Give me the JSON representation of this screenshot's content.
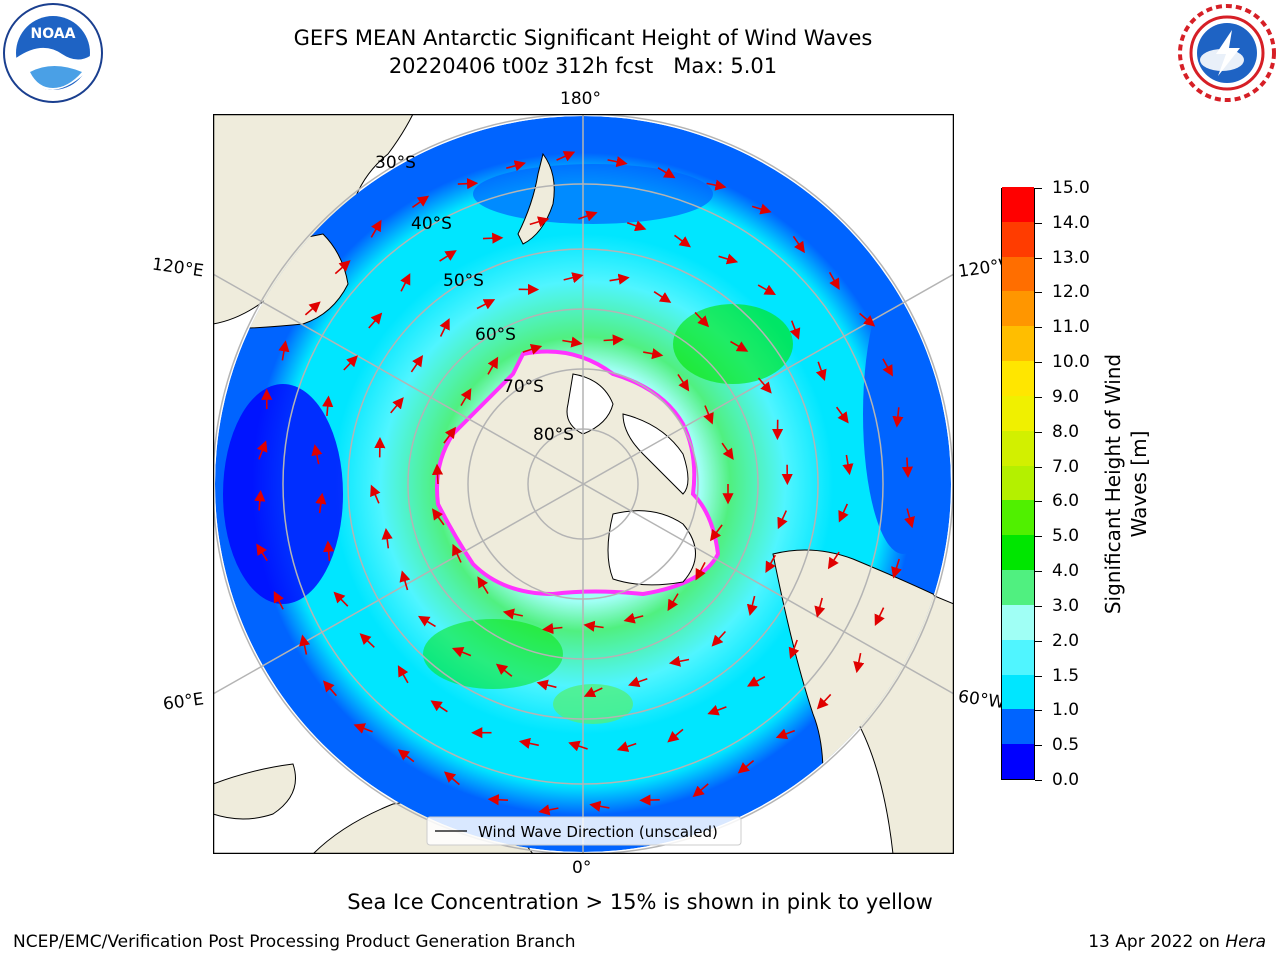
{
  "header": {
    "title_line1": "GEFS MEAN Antarctic Significant Height of Wind Waves",
    "title_line2": "20220406 t00z 312h fcst   Max: 5.01"
  },
  "logos": {
    "left": "NOAA",
    "right": "NATIONAL WEATHER SERVICE"
  },
  "map": {
    "projection": "south-polar-stereographic",
    "lon_labels": {
      "top": "180°",
      "bottom": "0°",
      "upper_left": "120°E",
      "upper_right": "120°W",
      "lower_left": "60°E",
      "lower_right": "60°W"
    },
    "lat_labels": [
      "30°S",
      "40°S",
      "50°S",
      "60°S",
      "70°S",
      "80°S"
    ],
    "legend": "Wind Wave Direction (unscaled)",
    "colors": {
      "land": "#efecdc",
      "ice": "#ffffff",
      "sea_ice_edge": "#ff33ff",
      "arrows": "#e00000",
      "grid": "#b4b4b4"
    }
  },
  "colorbar": {
    "label_line1": "Significant Height of Wind",
    "label_line2": "Waves [m]",
    "ticks": [
      "0.0",
      "0.5",
      "1.0",
      "1.5",
      "2.0",
      "3.0",
      "4.0",
      "5.0",
      "6.0",
      "7.0",
      "8.0",
      "9.0",
      "10.0",
      "11.0",
      "12.0",
      "13.0",
      "14.0",
      "15.0"
    ],
    "colors": [
      "#0000ff",
      "#0064ff",
      "#00e6ff",
      "#50f5ff",
      "#a0fff5",
      "#50f080",
      "#00e600",
      "#50f000",
      "#b4f000",
      "#d2f000",
      "#f0f000",
      "#ffe600",
      "#ffbe00",
      "#ff9600",
      "#ff6e00",
      "#ff3c00",
      "#ff0000"
    ]
  },
  "caption": "Sea Ice Concentration > 15% is shown in pink to yellow",
  "footer": {
    "left": "NCEP/EMC/Verification Post Processing Product Generation Branch",
    "right_prefix": "13 Apr 2022 on ",
    "right_machine": "Hera"
  }
}
